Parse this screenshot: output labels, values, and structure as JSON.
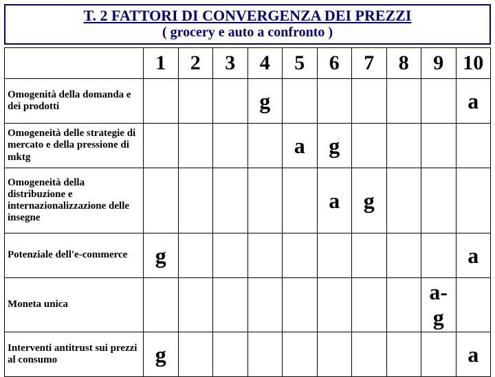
{
  "title": {
    "part_underlined": "T. 2 FATTORI DI CONVERGENZA DEI PREZZI",
    "line2": "( grocery e auto a confronto )"
  },
  "columns": [
    "1",
    "2",
    "3",
    "4",
    "5",
    "6",
    "7",
    "8",
    "9",
    "10"
  ],
  "rows": [
    {
      "label": "Omogenità della domanda e dei prodotti",
      "cells": [
        "",
        "",
        "",
        "g",
        "",
        "",
        "",
        "",
        "",
        "a"
      ],
      "heightClass": "short"
    },
    {
      "label": "Omogeneità delle strategie di mercato e della pressione di mktg",
      "cells": [
        "",
        "",
        "",
        "",
        "a",
        "g",
        "",
        "",
        "",
        ""
      ],
      "heightClass": ""
    },
    {
      "label": "Omogeneità della distribuzione e internazionalizzazione delle insegne",
      "cells": [
        "",
        "",
        "",
        "",
        "",
        "a",
        "g",
        "",
        "",
        ""
      ],
      "heightClass": "tall"
    },
    {
      "label": "Potenziale dell'e-commerce",
      "cells": [
        "g",
        "",
        "",
        "",
        "",
        "",
        "",
        "",
        "",
        "a"
      ],
      "heightClass": "short"
    },
    {
      "label": "Moneta unica",
      "cells": [
        "",
        "",
        "",
        "",
        "",
        "",
        "",
        "",
        "a-g",
        ""
      ],
      "heightClass": "short"
    },
    {
      "label": "Interventi antitrust sui prezzi al consumo",
      "cells": [
        "g",
        "",
        "",
        "",
        "",
        "",
        "",
        "",
        "",
        "a"
      ],
      "heightClass": "short"
    }
  ],
  "style": {
    "title_border_color": "#000080",
    "title_text_color": "#000080",
    "grid_border_color": "#000000",
    "mark_color": "#000000",
    "mark_fontsize": 32,
    "header_fontsize": 30,
    "label_fontsize": 15,
    "background_color": "#ffffff"
  }
}
